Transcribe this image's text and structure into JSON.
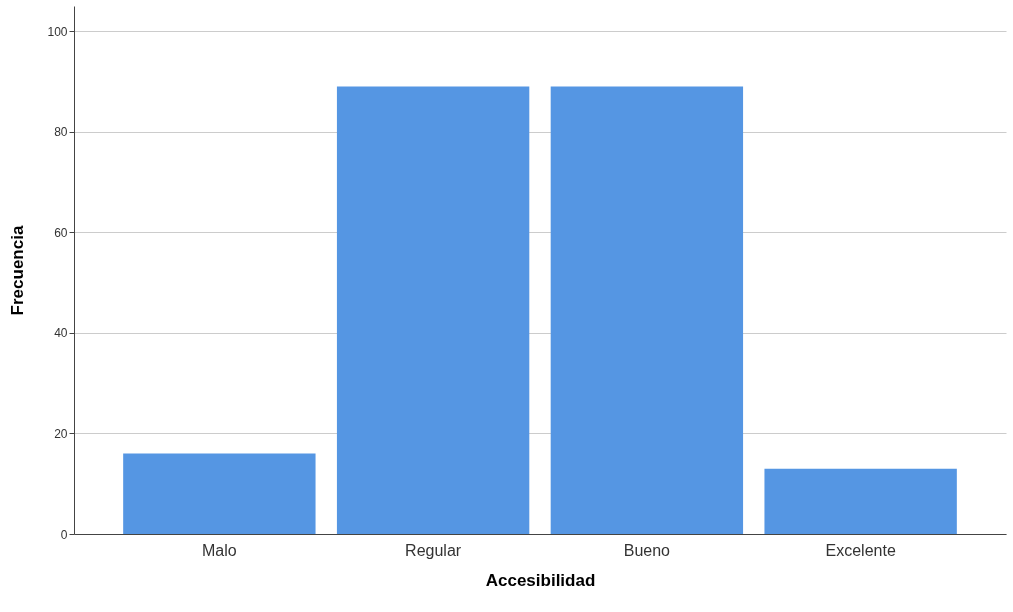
{
  "chart_data": {
    "type": "bar",
    "xlabel": "Accesibilidad",
    "ylabel": "Frecuencia",
    "categories": [
      "Malo",
      "Regular",
      "Bueno",
      "Excelente"
    ],
    "values": [
      16,
      89,
      89,
      13
    ],
    "color": "#5596e3",
    "ylim": [
      0,
      105
    ],
    "yticks": [
      0,
      20,
      40,
      60,
      80,
      100
    ],
    "grid": "y"
  }
}
